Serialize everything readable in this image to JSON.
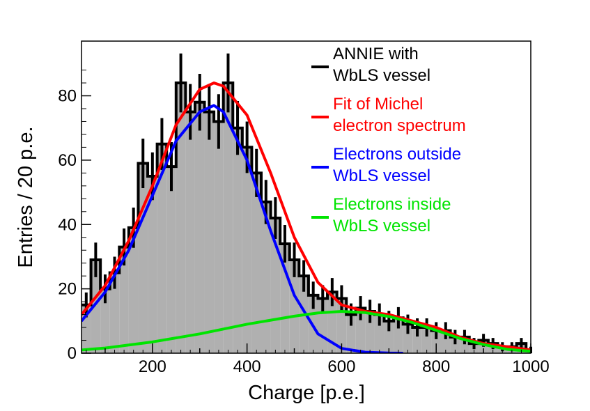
{
  "chart_data": {
    "type": "histogram",
    "xlabel": "Charge [p.e.]",
    "ylabel": "Entries / 20 p.e.",
    "xlim": [
      50,
      1000
    ],
    "ylim": [
      0,
      97
    ],
    "bin_width": 20,
    "x_ticks": [
      200,
      400,
      600,
      800,
      1000
    ],
    "y_ticks": [
      0,
      20,
      40,
      60,
      80
    ],
    "histogram": {
      "name": "ANNIE with WbLS vessel",
      "bin_low_edges": [
        50,
        70,
        90,
        110,
        130,
        150,
        170,
        190,
        210,
        230,
        250,
        270,
        290,
        310,
        330,
        350,
        370,
        390,
        410,
        430,
        450,
        470,
        490,
        510,
        530,
        550,
        570,
        590,
        610,
        630,
        650,
        670,
        690,
        710,
        730,
        750,
        770,
        790,
        810,
        830,
        850,
        870,
        890,
        910,
        930,
        950,
        970,
        990
      ],
      "values": [
        15,
        29,
        20,
        25,
        33,
        39,
        59,
        55,
        65,
        58,
        84,
        75,
        78,
        75,
        72,
        84,
        70,
        64,
        56,
        47,
        42,
        34,
        29,
        24,
        18,
        17,
        19,
        17,
        12,
        14,
        13,
        12,
        10,
        11,
        9,
        8,
        8,
        7,
        7,
        5,
        5,
        3,
        4,
        3,
        2,
        2,
        3,
        1
      ],
      "fill_color": "#b0b0b0"
    },
    "fit_curves": [
      {
        "name": "Fit of Michel electron spectrum",
        "color": "#ff0000",
        "x": [
          50,
          100,
          150,
          200,
          250,
          300,
          330,
          350,
          400,
          450,
          500,
          550,
          600,
          650,
          700,
          750,
          800,
          850,
          900,
          950,
          1000
        ],
        "y": [
          12,
          21,
          35,
          52,
          71,
          82,
          84,
          83,
          74,
          56,
          36,
          22,
          15,
          13,
          12,
          10,
          8,
          5,
          3,
          2,
          1
        ]
      },
      {
        "name": "Electrons outside WbLS vessel",
        "color": "#0000ff",
        "x": [
          50,
          100,
          150,
          200,
          250,
          300,
          330,
          350,
          400,
          450,
          500,
          550,
          600,
          650,
          700,
          730
        ],
        "y": [
          10,
          19,
          32,
          49,
          66,
          75,
          77,
          75,
          60,
          38,
          18,
          6,
          1.5,
          0.3,
          0.05,
          0
        ]
      },
      {
        "name": "Electrons inside WbLS vessel",
        "color": "#00e400",
        "x": [
          50,
          100,
          200,
          300,
          400,
          500,
          550,
          600,
          650,
          700,
          750,
          800,
          850,
          900,
          950,
          1000
        ],
        "y": [
          1,
          1.6,
          3.5,
          6,
          9,
          11.5,
          12.5,
          13,
          12.6,
          11.4,
          9.5,
          7.1,
          4.6,
          2.7,
          1.2,
          0.6
        ]
      }
    ],
    "legend": [
      {
        "line1": "ANNIE with",
        "line2": "WbLS vessel",
        "color": "#000000"
      },
      {
        "line1": "Fit of Michel",
        "line2": "electron spectrum",
        "color": "#ff0000"
      },
      {
        "line1": "Electrons outside",
        "line2": "WbLS vessel",
        "color": "#0000ff"
      },
      {
        "line1": "Electrons inside",
        "line2": "WbLS vessel",
        "color": "#00e400"
      }
    ],
    "legend_position": "top-right"
  }
}
